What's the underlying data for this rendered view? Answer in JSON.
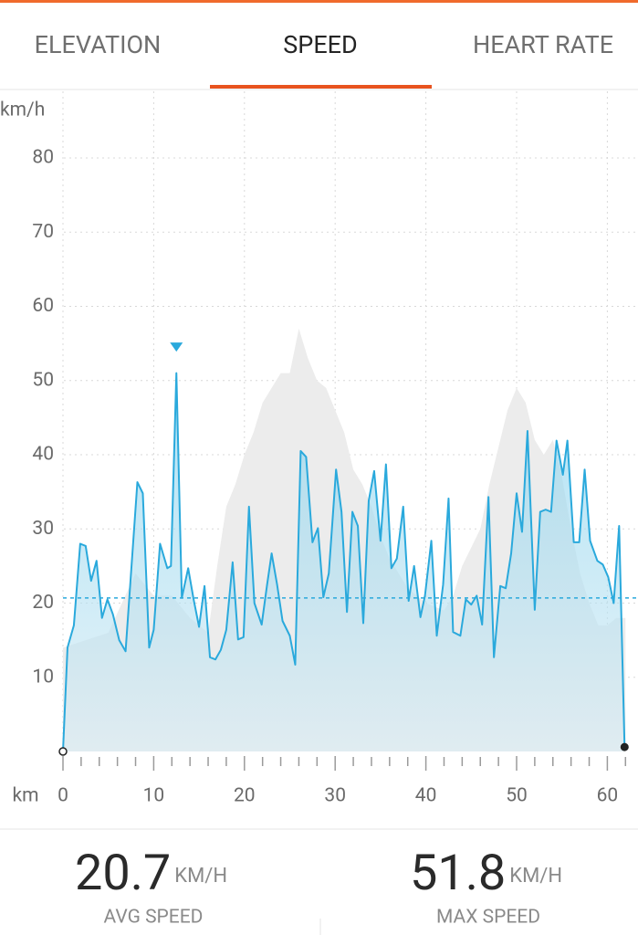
{
  "tabs": [
    "ELEVATION",
    "SPEED",
    "HEART RATE"
  ],
  "chart_data": {
    "type": "area-line",
    "y_label": "km/h",
    "x_label": "km",
    "ylim": [
      0,
      80
    ],
    "yticks": [
      10,
      20,
      30,
      40,
      50,
      60,
      70,
      80
    ],
    "xlim": [
      0,
      62
    ],
    "xticks": [
      0,
      10,
      20,
      30,
      40,
      50,
      60
    ],
    "xminorticks": [
      2,
      4,
      6,
      8,
      12,
      14,
      16,
      18,
      22,
      24,
      26,
      28,
      32,
      34,
      36,
      38,
      42,
      44,
      46,
      48,
      52,
      54,
      56,
      58,
      62
    ],
    "grid": true,
    "x": [
      0,
      0.5,
      1.2,
      1.9,
      2.5,
      3.1,
      3.7,
      4.3,
      4.9,
      5.5,
      6.2,
      6.9,
      8.2,
      8.8,
      9.5,
      10,
      10.7,
      11.5,
      11.9,
      12.5,
      13.1,
      13.8,
      14.4,
      15,
      15.6,
      16.2,
      16.8,
      17.4,
      18,
      18.7,
      19.3,
      19.9,
      20.5,
      21.1,
      21.9,
      22.5,
      23,
      23.6,
      24.2,
      25,
      25.6,
      26.2,
      26.8,
      27.5,
      28.1,
      28.7,
      29.3,
      30.1,
      30.7,
      31.3,
      31.9,
      32.5,
      33.1,
      33.7,
      34.3,
      35,
      35.6,
      36.2,
      36.8,
      37.5,
      38.1,
      38.7,
      39.4,
      39.9,
      40.6,
      41.2,
      41.9,
      42.5,
      43,
      43.8,
      44.4,
      45,
      45.6,
      46.2,
      46.9,
      47.5,
      48.2,
      48.8,
      49.4,
      50,
      50.6,
      51.2,
      52,
      52.6,
      53.2,
      53.8,
      54.4,
      55.1,
      55.6,
      56.3,
      56.9,
      57.5,
      58.1,
      58.9,
      59.5,
      60.1,
      60.7,
      61.3,
      61.9
    ],
    "series": [
      {
        "color": "#2aa9dc",
        "values": [
          0,
          14,
          17,
          28,
          27.7,
          23,
          25.7,
          18,
          20.5,
          18.5,
          15,
          13.5,
          36.3,
          34.8,
          14,
          16.4,
          28,
          24.7,
          25,
          51,
          20.7,
          24.7,
          20.5,
          16.8,
          22.3,
          12.7,
          12.4,
          13.7,
          16.4,
          25.5,
          15.1,
          15.4,
          33,
          20,
          17.1,
          22.5,
          26.7,
          22.5,
          17.6,
          15.6,
          11.7,
          40.5,
          39.7,
          28.2,
          30.1,
          20.8,
          24,
          38,
          32.3,
          18.8,
          32.3,
          30.4,
          17.3,
          33.8,
          37.8,
          28.4,
          38.7,
          24.7,
          26,
          33,
          20.3,
          25,
          18.1,
          21,
          28.4,
          15.6,
          22.5,
          34.1,
          16.1,
          15.6,
          20.5,
          19.8,
          21,
          17.1,
          34.3,
          12.7,
          22.3,
          22,
          26.7,
          34.8,
          29.6,
          43.2,
          19.1,
          32.3,
          32.6,
          32.3,
          41.9,
          37.3,
          41.9,
          28.2,
          28.2,
          38,
          28.4,
          25.7,
          25.2,
          23.5,
          20,
          30.4,
          0.6
        ]
      }
    ],
    "background": {
      "color": "#ececec",
      "x": [
        0,
        5,
        8,
        10,
        12,
        14,
        16,
        17,
        18,
        19,
        20,
        21,
        22,
        23,
        24,
        25,
        26,
        27,
        28,
        29,
        30,
        31,
        32,
        33,
        34,
        35,
        36,
        38,
        40,
        42,
        43,
        44,
        46,
        47,
        48,
        49,
        50,
        51,
        52,
        53,
        54,
        55,
        56,
        57,
        58,
        59,
        60,
        61,
        62
      ],
      "values": [
        14,
        16,
        24,
        21,
        21,
        18,
        16,
        25,
        33,
        36,
        40,
        43,
        47,
        49,
        51,
        51,
        57,
        53,
        50,
        49,
        46,
        43,
        38,
        36,
        33,
        29,
        26,
        22,
        20,
        19,
        21,
        25,
        30,
        36,
        41,
        46,
        49,
        47,
        42,
        40,
        42,
        37,
        30,
        24,
        20,
        17,
        17,
        18,
        18
      ]
    }
  },
  "stats": [
    {
      "value": 20.7,
      "unit": "KM/H",
      "label": "AVG SPEED"
    },
    {
      "value": 51.8,
      "unit": "KM/H",
      "label": "MAX SPEED"
    }
  ]
}
